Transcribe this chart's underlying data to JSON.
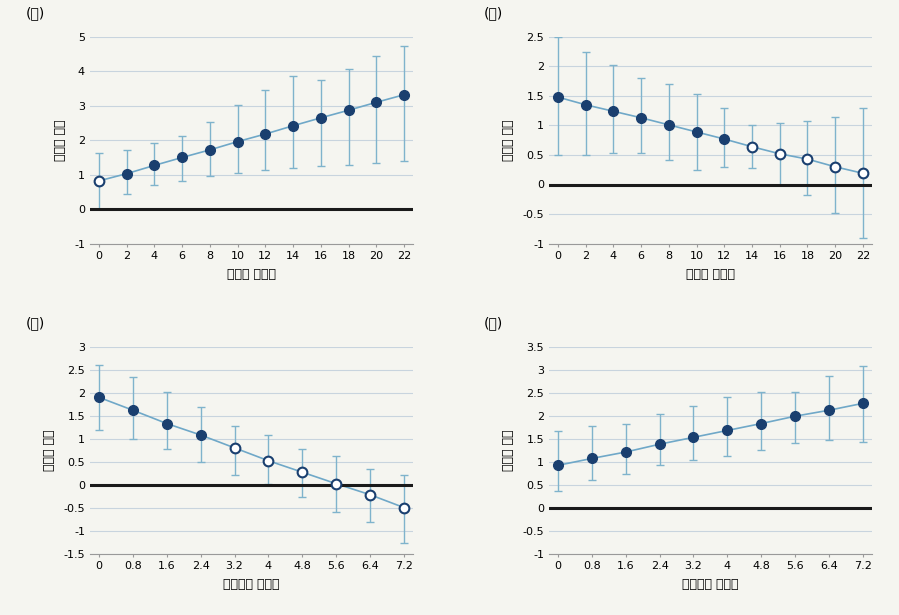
{
  "panel_ga": {
    "label": "(쟁)",
    "ylabel": "명성의 효과",
    "xlabel": "객관적 심각성",
    "x": [
      0,
      2,
      4,
      6,
      8,
      10,
      12,
      14,
      16,
      18,
      20,
      22
    ],
    "y": [
      0.82,
      1.03,
      1.27,
      1.5,
      1.72,
      1.96,
      2.18,
      2.42,
      2.65,
      2.87,
      3.1,
      3.32
    ],
    "yerr_lo": [
      0.82,
      0.6,
      0.58,
      0.68,
      0.75,
      0.9,
      1.05,
      1.23,
      1.4,
      1.58,
      1.76,
      1.93
    ],
    "yerr_hi": [
      0.82,
      0.7,
      0.65,
      0.62,
      0.82,
      1.05,
      1.28,
      1.45,
      1.1,
      1.2,
      1.35,
      1.42
    ],
    "open_indices": [
      0
    ],
    "ylim": [
      -1.0,
      5.0
    ],
    "yticks": [
      -1.0,
      0.0,
      1.0,
      2.0,
      3.0,
      4.0,
      5.0
    ],
    "xticks": [
      0,
      2,
      4,
      6,
      8,
      10,
      12,
      14,
      16,
      18,
      20,
      22
    ]
  },
  "panel_na": {
    "label": "(ㄴ)",
    "ylabel": "애착의 효과",
    "xlabel": "객관적 심각성",
    "x": [
      0,
      2,
      4,
      6,
      8,
      10,
      12,
      14,
      16,
      18,
      20,
      22
    ],
    "y": [
      1.48,
      1.35,
      1.24,
      1.13,
      1.01,
      0.89,
      0.77,
      0.64,
      0.52,
      0.43,
      0.3,
      0.19
    ],
    "yerr_lo": [
      0.98,
      0.85,
      0.7,
      0.6,
      0.6,
      0.65,
      0.48,
      0.36,
      0.52,
      0.6,
      0.78,
      1.1
    ],
    "yerr_hi": [
      1.02,
      0.9,
      0.78,
      0.68,
      0.7,
      0.65,
      0.52,
      0.36,
      0.52,
      0.65,
      0.85,
      1.1
    ],
    "open_indices": [
      7,
      8,
      9,
      10,
      11
    ],
    "ylim": [
      -1.0,
      2.5
    ],
    "yticks": [
      -1.0,
      -0.5,
      0.0,
      0.5,
      1.0,
      1.5,
      2.0,
      2.5
    ],
    "xticks": [
      0,
      2,
      4,
      6,
      8,
      10,
      12,
      14,
      16,
      18,
      20,
      22
    ]
  },
  "panel_da": {
    "label": "(ㅇ)",
    "ylabel": "명성의 효과",
    "xlabel": "인식상의 심각성",
    "x": [
      0,
      0.8,
      1.6,
      2.4,
      3.2,
      4.0,
      4.8,
      5.6,
      6.4,
      7.2
    ],
    "y": [
      1.9,
      1.62,
      1.33,
      1.08,
      0.8,
      0.52,
      0.27,
      0.02,
      -0.22,
      -0.5
    ],
    "yerr_lo": [
      0.7,
      0.62,
      0.55,
      0.58,
      0.6,
      0.5,
      0.55,
      0.62,
      0.6,
      0.78
    ],
    "yerr_hi": [
      0.7,
      0.72,
      0.68,
      0.62,
      0.48,
      0.55,
      0.5,
      0.6,
      0.55,
      0.72
    ],
    "open_indices": [
      4,
      5,
      6,
      7,
      8,
      9
    ],
    "ylim": [
      -1.5,
      3.0
    ],
    "yticks": [
      -1.5,
      -1.0,
      -0.5,
      0.0,
      0.5,
      1.0,
      1.5,
      2.0,
      2.5,
      3.0
    ],
    "xticks": [
      0,
      0.8,
      1.6,
      2.4,
      3.2,
      4.0,
      4.8,
      5.6,
      6.4,
      7.2
    ]
  },
  "panel_ra": {
    "label": "(ㄹ)",
    "ylabel": "애착의 효과",
    "xlabel": "인식상의 심각성",
    "x": [
      0,
      0.8,
      1.6,
      2.4,
      3.2,
      4.0,
      4.8,
      5.6,
      6.4,
      7.2
    ],
    "y": [
      0.92,
      1.07,
      1.21,
      1.38,
      1.53,
      1.68,
      1.83,
      1.99,
      2.12,
      2.27
    ],
    "yerr_lo": [
      0.55,
      0.48,
      0.48,
      0.45,
      0.5,
      0.55,
      0.58,
      0.58,
      0.65,
      0.85
    ],
    "yerr_hi": [
      0.75,
      0.7,
      0.6,
      0.65,
      0.68,
      0.72,
      0.68,
      0.52,
      0.75,
      0.82
    ],
    "open_indices": [],
    "ylim": [
      -1.0,
      3.5
    ],
    "yticks": [
      -1.0,
      -0.5,
      0.0,
      0.5,
      1.0,
      1.5,
      2.0,
      2.5,
      3.0,
      3.5
    ],
    "xticks": [
      0,
      0.8,
      1.6,
      2.4,
      3.2,
      4.0,
      4.8,
      5.6,
      6.4,
      7.2
    ]
  },
  "dot_color_filled": "#1a3f6f",
  "dot_color_open": "#1a3f6f",
  "line_color": "#6fa8c8",
  "err_color": "#7fb3cc",
  "zero_line_color": "#1a1a1a",
  "bg_color": "#f5f5f0",
  "grid_color": "#c8d4de"
}
